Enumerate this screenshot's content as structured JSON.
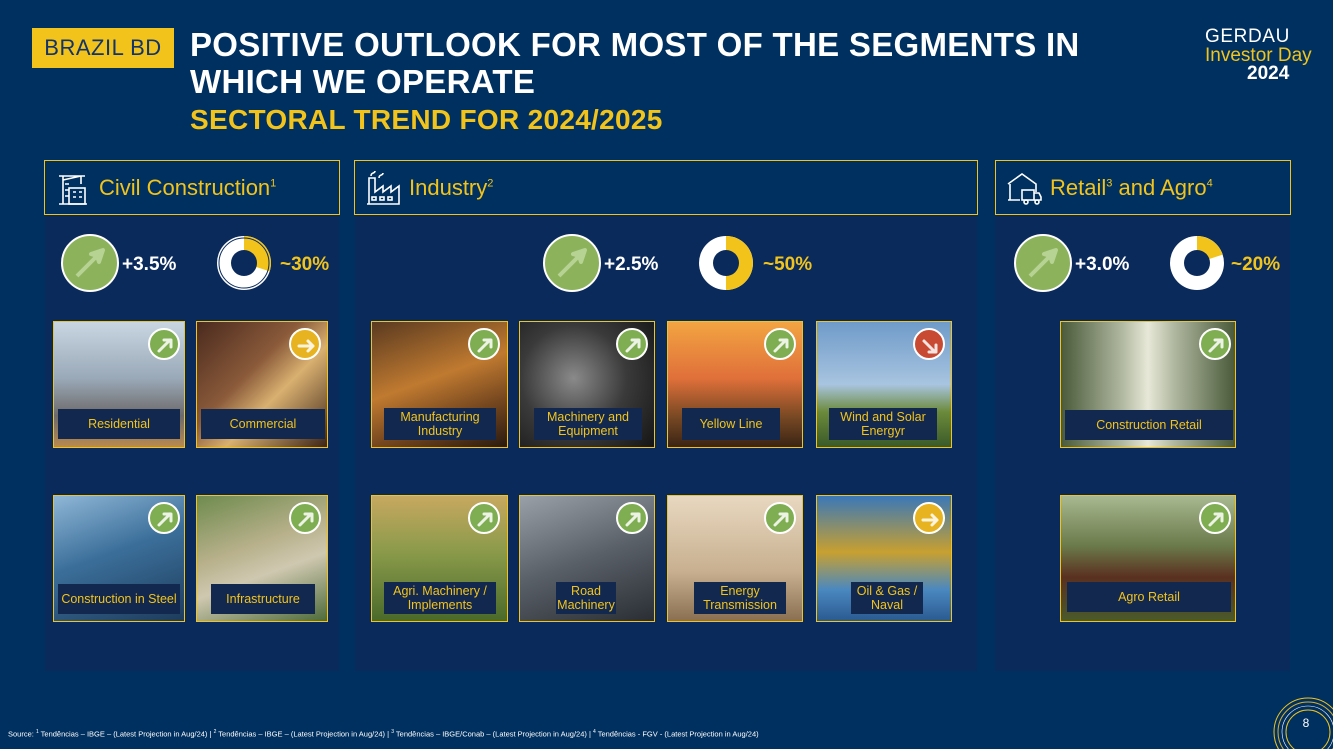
{
  "tag": "BRAZIL BD",
  "title_line1": "POSITIVE OUTLOOK FOR MOST OF THE SEGMENTS IN",
  "title_line2": "WHICH WE OPERATE",
  "subtitle": "SECTORAL TREND FOR 2024/2025",
  "logo": {
    "line1": "GERDAU",
    "line2": "Investor Day",
    "line3": "2024"
  },
  "sections": {
    "civil": {
      "label": "Civil Construction",
      "sup": "1",
      "icon": "construction-crane-icon",
      "growth": "+3.5%",
      "share": "~30%",
      "share_fraction": 0.3,
      "tiles": [
        {
          "caption": "Residential",
          "trend": "up"
        },
        {
          "caption": "Commercial",
          "trend": "flat"
        },
        {
          "caption": "Construction in Steel",
          "trend": "up"
        },
        {
          "caption": "Infrastructure",
          "trend": "up"
        }
      ]
    },
    "industry": {
      "label": "Industry",
      "sup": "2",
      "icon": "factory-icon",
      "growth": "+2.5%",
      "share": "~50%",
      "share_fraction": 0.5,
      "tiles": [
        {
          "caption": "Manufacturing Industry",
          "trend": "up"
        },
        {
          "caption": "Machinery and Equipment",
          "trend": "up"
        },
        {
          "caption": "Yellow Line",
          "trend": "up"
        },
        {
          "caption": "Wind and Solar Energyr",
          "trend": "down"
        },
        {
          "caption": "Agri. Machinery / Implements",
          "trend": "up"
        },
        {
          "caption": "Road Machinery",
          "trend": "up"
        },
        {
          "caption": "Energy Transmission",
          "trend": "up"
        },
        {
          "caption": "Oil & Gas / Naval",
          "trend": "flat"
        }
      ]
    },
    "retail": {
      "label_a": "Retail",
      "sup_a": "3",
      "label_b": " and Agro",
      "sup_b": "4",
      "icon": "warehouse-truck-icon",
      "growth": "+3.0%",
      "share": "~20%",
      "share_fraction": 0.2,
      "tiles": [
        {
          "caption": "Construction Retail",
          "trend": "up"
        },
        {
          "caption": "Agro Retail",
          "trend": "up"
        }
      ]
    }
  },
  "source": {
    "prefix": "Source: ",
    "s1": "1",
    "t1": " Tendências – IBGE – (Latest Projection in Aug/24) | ",
    "s2": "2",
    "t2": " Tendências – IBGE – (Latest Projection in Aug/24) | ",
    "s3": "3",
    "t3": " Tendências – IBGE/Conab – (Latest Projection in Aug/24) | ",
    "s4": "4",
    "t4": " Tendências - FGV - (Latest Projection in Aug/24)"
  },
  "page_number": "8",
  "colors": {
    "background": "#00305f",
    "accent": "#f2c41b",
    "up": "#7fae52",
    "flat": "#e8b320",
    "down": "#c94a33"
  }
}
